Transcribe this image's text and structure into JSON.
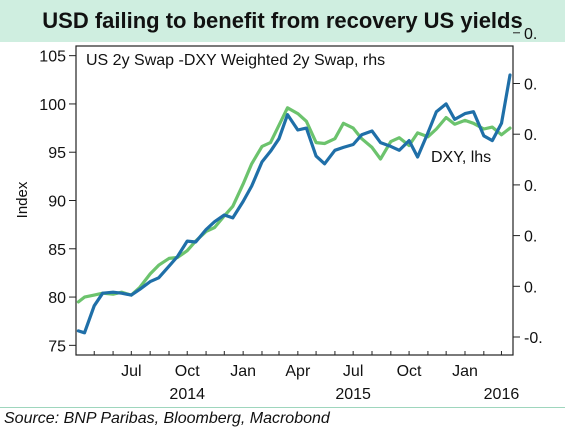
{
  "chart_data": {
    "type": "line",
    "title": "USD failing to benefit from recovery US yields",
    "ylabel": "Index",
    "ylim": [
      74,
      106
    ],
    "left_axis": {
      "ticks": [
        75,
        80,
        85,
        90,
        95,
        100,
        105
      ]
    },
    "right_axis": {
      "tick_labels": [
        "-0.",
        "0.",
        "0.",
        "0.",
        "0.",
        "0.",
        "0."
      ]
    },
    "x_range": [
      "2014-04-01",
      "2016-03-20"
    ],
    "x_ticks": [
      {
        "date": "2014-07-01",
        "label": "Jul"
      },
      {
        "date": "2014-10-01",
        "label": "Oct"
      },
      {
        "date": "2015-01-01",
        "label": "Jan"
      },
      {
        "date": "2015-04-01",
        "label": "Apr"
      },
      {
        "date": "2015-07-01",
        "label": "Jul"
      },
      {
        "date": "2015-10-01",
        "label": "Oct"
      },
      {
        "date": "2016-01-01",
        "label": "Jan"
      }
    ],
    "year_labels": [
      {
        "date": "2014-10-01",
        "label": "2014"
      },
      {
        "date": "2015-07-01",
        "label": "2015"
      },
      {
        "date": "2016-03-01",
        "label": "2016"
      }
    ],
    "series": [
      {
        "name": "DXY, lhs",
        "color": "#1f6fa8",
        "x": [
          "2014-04-05",
          "2014-04-15",
          "2014-05-01",
          "2014-05-15",
          "2014-06-01",
          "2014-06-15",
          "2014-07-01",
          "2014-07-15",
          "2014-08-01",
          "2014-08-15",
          "2014-09-01",
          "2014-09-15",
          "2014-10-01",
          "2014-10-15",
          "2014-11-01",
          "2014-11-15",
          "2014-12-01",
          "2014-12-15",
          "2015-01-01",
          "2015-01-15",
          "2015-02-01",
          "2015-02-15",
          "2015-03-01",
          "2015-03-15",
          "2015-04-01",
          "2015-04-15",
          "2015-05-01",
          "2015-05-15",
          "2015-06-01",
          "2015-06-15",
          "2015-07-01",
          "2015-07-15",
          "2015-08-01",
          "2015-08-15",
          "2015-09-01",
          "2015-09-15",
          "2015-10-01",
          "2015-10-15",
          "2015-11-01",
          "2015-11-15",
          "2015-12-01",
          "2015-12-15",
          "2016-01-01",
          "2016-01-15",
          "2016-02-01",
          "2016-02-15",
          "2016-03-01",
          "2016-03-15"
        ],
        "values": [
          76.5,
          76.3,
          79.1,
          80.4,
          80.5,
          80.4,
          80.2,
          80.8,
          81.6,
          82.0,
          83.2,
          84.2,
          85.8,
          85.7,
          87.0,
          87.8,
          88.5,
          88.2,
          89.9,
          91.5,
          94.0,
          95.1,
          96.4,
          98.9,
          97.3,
          97.5,
          94.6,
          93.8,
          95.2,
          95.5,
          95.8,
          96.8,
          97.2,
          96.0,
          95.6,
          95.2,
          96.2,
          94.5,
          97.0,
          99.2,
          100.0,
          98.4,
          99.0,
          99.2,
          96.7,
          96.2,
          98.0,
          103.0
        ]
      },
      {
        "name": "US 2y Swap -DXY Weighted 2y Swap, rhs",
        "color": "#6cc36d",
        "x": [
          "2014-04-05",
          "2014-04-15",
          "2014-05-01",
          "2014-05-15",
          "2014-06-01",
          "2014-06-15",
          "2014-07-01",
          "2014-07-15",
          "2014-08-01",
          "2014-08-15",
          "2014-09-01",
          "2014-09-15",
          "2014-10-01",
          "2014-10-15",
          "2014-11-01",
          "2014-11-15",
          "2014-12-01",
          "2014-12-15",
          "2015-01-01",
          "2015-01-15",
          "2015-02-01",
          "2015-02-15",
          "2015-03-01",
          "2015-03-15",
          "2015-04-01",
          "2015-04-15",
          "2015-05-01",
          "2015-05-15",
          "2015-06-01",
          "2015-06-15",
          "2015-07-01",
          "2015-07-15",
          "2015-08-01",
          "2015-08-15",
          "2015-09-01",
          "2015-09-15",
          "2015-10-01",
          "2015-10-15",
          "2015-11-01",
          "2015-11-15",
          "2015-12-01",
          "2015-12-15",
          "2016-01-01",
          "2016-01-15",
          "2016-02-01",
          "2016-02-15",
          "2016-03-01",
          "2016-03-15"
        ],
        "values": [
          79.5,
          80.0,
          80.2,
          80.4,
          80.3,
          80.5,
          80.2,
          81.0,
          82.4,
          83.3,
          84.0,
          84.1,
          84.8,
          85.8,
          86.8,
          87.2,
          88.4,
          89.4,
          91.7,
          93.8,
          95.6,
          96.0,
          97.8,
          99.6,
          99.0,
          98.2,
          96.0,
          95.9,
          96.4,
          98.0,
          97.5,
          96.4,
          95.5,
          94.3,
          96.1,
          96.5,
          95.7,
          97.0,
          96.6,
          97.4,
          98.6,
          97.9,
          98.3,
          98.0,
          97.4,
          97.6,
          96.8,
          97.5
        ]
      }
    ],
    "annotations": [
      {
        "text": "US 2y Swap -DXY Weighted 2y Swap, rhs"
      },
      {
        "text": "DXY, lhs"
      }
    ],
    "grid": false,
    "legend": "none"
  },
  "source": "Source:  BNP Paribas, Bloomberg, Macrobond"
}
